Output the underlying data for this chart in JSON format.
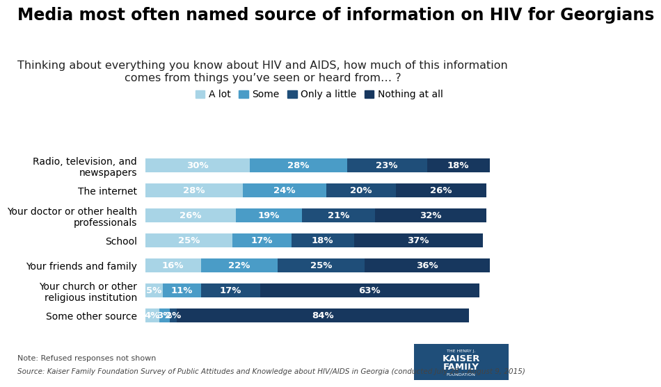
{
  "title": "Media most often named source of information on HIV for Georgians",
  "subtitle": "Thinking about everything you know about HIV and AIDS, how much of this information\ncomes from things you’ve seen or heard from… ?",
  "categories": [
    "Radio, television, and\nnewspapers",
    "The internet",
    "Your doctor or other health\nprofessionals",
    "School",
    "Your friends and family",
    "Your church or other\nreligious institution",
    "Some other source"
  ],
  "legend_labels": [
    "A lot",
    "Some",
    "Only a little",
    "Nothing at all"
  ],
  "colors": [
    "#a8d4e6",
    "#4a9cc7",
    "#1f4e79",
    "#17375e"
  ],
  "data": [
    [
      30,
      28,
      23,
      18
    ],
    [
      28,
      24,
      20,
      26
    ],
    [
      26,
      19,
      21,
      32
    ],
    [
      25,
      17,
      18,
      37
    ],
    [
      16,
      22,
      25,
      36
    ],
    [
      5,
      11,
      17,
      63
    ],
    [
      4,
      3,
      2,
      84
    ]
  ],
  "note": "Note: Refused responses not shown",
  "source": "Source: Kaiser Family Foundation Survey of Public Attitudes and Knowledge about HIV/AIDS in Georgia (conducted July 28 – August 9, 2015)",
  "background_color": "#ffffff",
  "bar_height": 0.55,
  "title_fontsize": 17,
  "subtitle_fontsize": 11.5,
  "label_fontsize": 10,
  "bar_label_fontsize": 9.5,
  "legend_fontsize": 10,
  "note_fontsize": 8,
  "xlim": [
    0,
    100
  ]
}
